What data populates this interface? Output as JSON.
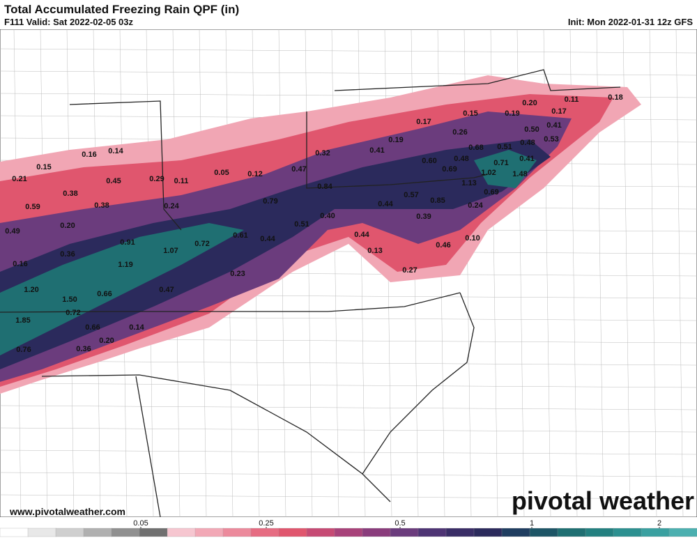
{
  "header": {
    "title": "Total Accumulated Freezing Rain QPF (in)",
    "valid": "F111 Valid: Sat 2022-02-05 03z",
    "init": "Init: Mon 2022-01-31 12z GFS"
  },
  "footer": {
    "url": "www.pivotalweather.com",
    "brand": "pivotal weather"
  },
  "colorbar": {
    "ticks": [
      0.05,
      0.25,
      0.5,
      1,
      2
    ]
  },
  "map_labels": [
    "0.18",
    "0.20",
    "0.11",
    "0.17",
    "0.19",
    "0.15",
    "0.17",
    "0.50",
    "0.41",
    "0.26",
    "0.19",
    "0.48",
    "0.53",
    "0.68",
    "0.51",
    "0.41",
    "0.32",
    "0.16",
    "0.14",
    "0.60",
    "0.48",
    "0.71",
    "0.41",
    "0.15",
    "0.47",
    "0.69",
    "1.02",
    "1.48",
    "0.05",
    "0.12",
    "0.21",
    "0.45",
    "0.29",
    "0.11",
    "0.84",
    "1.13",
    "0.38",
    "0.57",
    "0.69",
    "0.79",
    "0.85",
    "0.59",
    "0.38",
    "0.24",
    "0.44",
    "0.24",
    "0.40",
    "0.39",
    "0.20",
    "0.51",
    "0.49",
    "0.61",
    "0.44",
    "0.44",
    "0.10",
    "0.91",
    "0.72",
    "0.46",
    "0.36",
    "1.07",
    "0.13",
    "0.16",
    "1.19",
    "0.27",
    "0.23",
    "0.47",
    "0.66",
    "1.20",
    "1.50",
    "0.72",
    "1.85",
    "0.66",
    "0.14",
    "0.20",
    "0.36",
    "0.76"
  ]
}
